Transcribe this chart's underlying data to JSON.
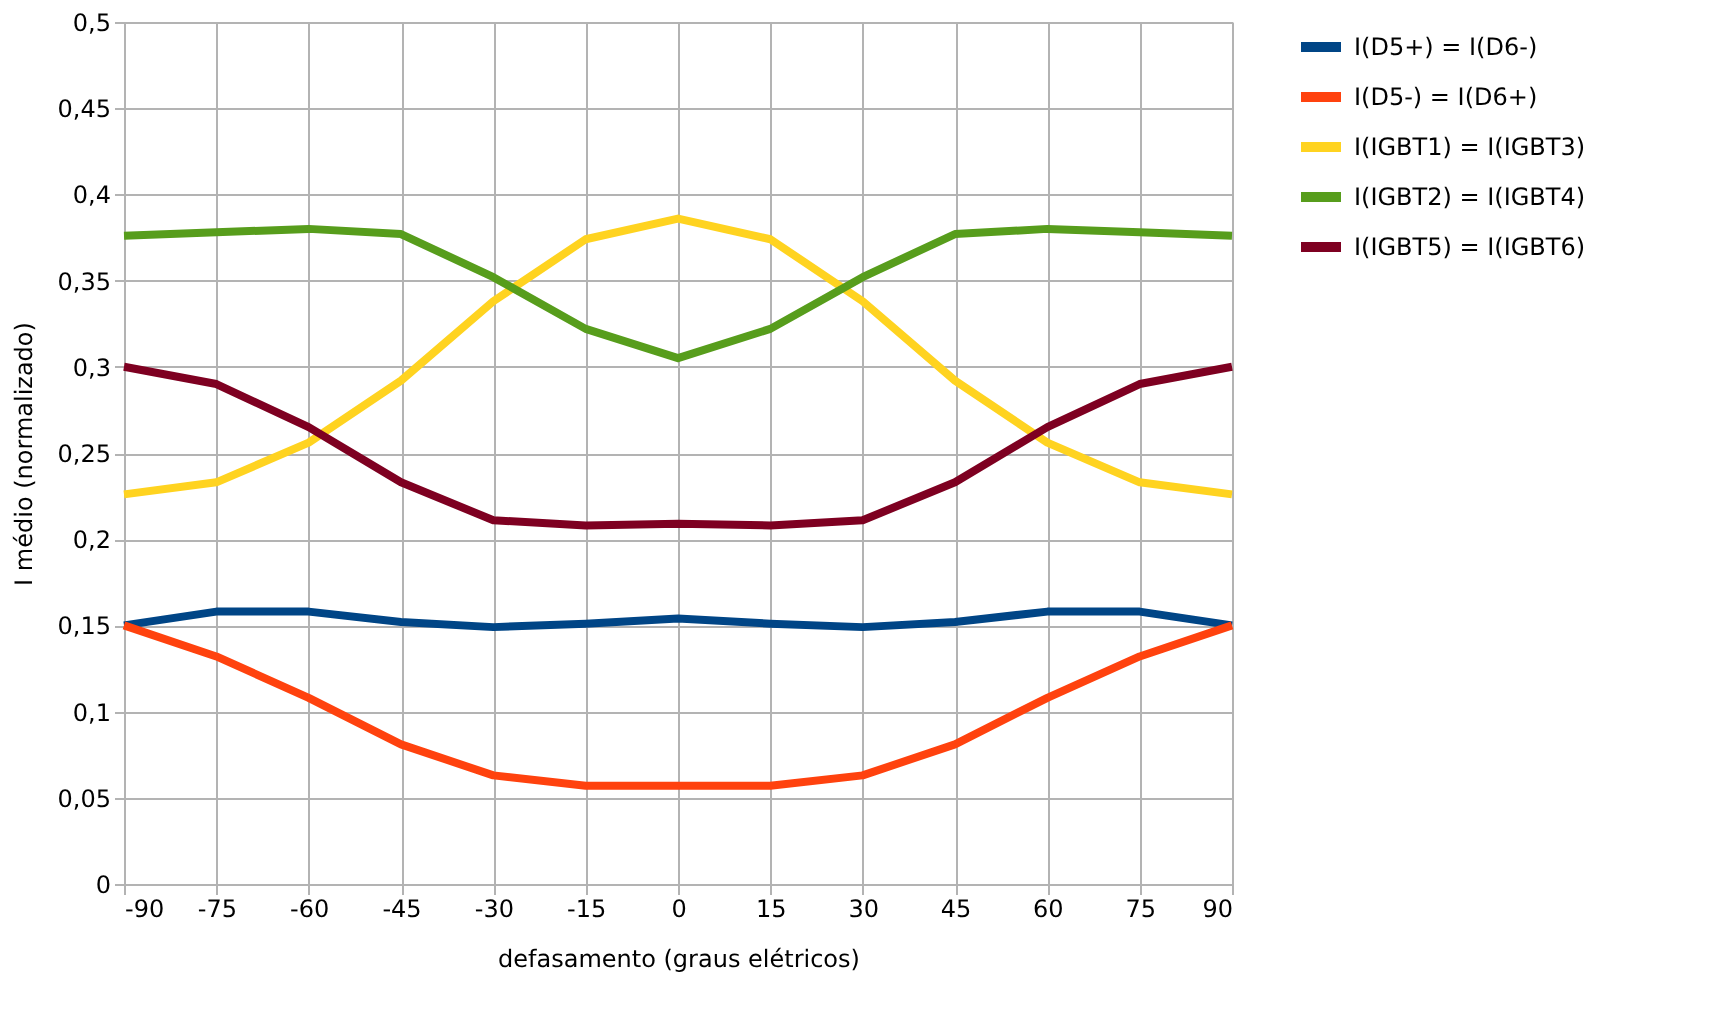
{
  "chart_data": {
    "type": "line",
    "xlabel": "defasamento (graus elétricos)",
    "ylabel": "I médio (normalizado)",
    "x": [
      -90,
      -75,
      -60,
      -45,
      -30,
      -15,
      0,
      15,
      30,
      45,
      60,
      75,
      90
    ],
    "xlim": [
      -90,
      90
    ],
    "xticks": [
      -90,
      -75,
      -60,
      -45,
      -30,
      -15,
      0,
      15,
      30,
      45,
      60,
      75,
      90
    ],
    "ylim": [
      0,
      0.5
    ],
    "yticks": [
      {
        "value": 0,
        "label": "0"
      },
      {
        "value": 0.05,
        "label": "0,05"
      },
      {
        "value": 0.1,
        "label": "0,1"
      },
      {
        "value": 0.15,
        "label": "0,15"
      },
      {
        "value": 0.2,
        "label": "0,2"
      },
      {
        "value": 0.25,
        "label": "0,25"
      },
      {
        "value": 0.3,
        "label": "0,3"
      },
      {
        "value": 0.35,
        "label": "0,35"
      },
      {
        "value": 0.4,
        "label": "0,4"
      },
      {
        "value": 0.45,
        "label": "0,45"
      },
      {
        "value": 0.5,
        "label": "0,5"
      }
    ],
    "grid": true,
    "legend": "right",
    "marker": "none",
    "line_style": "solid",
    "series": [
      {
        "name": "I(D5+) = I(D6-)",
        "color": "#004586",
        "values": [
          0.15,
          0.158,
          0.158,
          0.152,
          0.149,
          0.151,
          0.154,
          0.151,
          0.149,
          0.152,
          0.158,
          0.158,
          0.15
        ]
      },
      {
        "name": "I(D5-) = I(D6+)",
        "color": "#ff420e",
        "values": [
          0.15,
          0.132,
          0.108,
          0.081,
          0.063,
          0.057,
          0.057,
          0.057,
          0.063,
          0.081,
          0.108,
          0.132,
          0.15
        ]
      },
      {
        "name": "I(IGBT1) = I(IGBT3)",
        "color": "#ffd320",
        "values": [
          0.226,
          0.233,
          0.256,
          0.292,
          0.338,
          0.374,
          0.386,
          0.374,
          0.338,
          0.292,
          0.256,
          0.233,
          0.226
        ]
      },
      {
        "name": "I(IGBT2) = I(IGBT4)",
        "color": "#579d1c",
        "values": [
          0.376,
          0.378,
          0.38,
          0.377,
          0.352,
          0.322,
          0.305,
          0.322,
          0.352,
          0.377,
          0.38,
          0.378,
          0.376
        ]
      },
      {
        "name": "I(IGBT5) = I(IGBT6)",
        "color": "#7e0021",
        "values": [
          0.3,
          0.29,
          0.265,
          0.233,
          0.211,
          0.208,
          0.209,
          0.208,
          0.211,
          0.233,
          0.265,
          0.29,
          0.3
        ]
      }
    ]
  }
}
